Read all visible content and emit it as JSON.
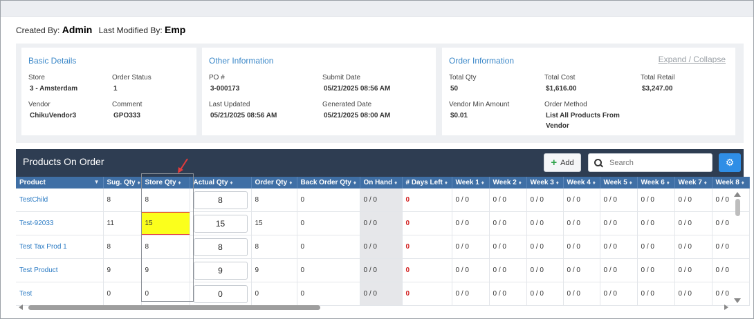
{
  "meta": {
    "created_by_label": "Created By:",
    "created_by": "Admin",
    "modified_by_label": "Last Modified By:",
    "modified_by": "Emp"
  },
  "expand_collapse": "Expand / Collapse",
  "basic": {
    "title": "Basic Details",
    "store_label": "Store",
    "store": "3 - Amsterdam",
    "status_label": "Order Status",
    "status": "1",
    "vendor_label": "Vendor",
    "vendor": "ChikuVendor3",
    "comment_label": "Comment",
    "comment": "GPO333"
  },
  "other": {
    "title": "Other Information",
    "po_label": "PO #",
    "po": "3-000173",
    "submit_label": "Submit Date",
    "submit": "05/21/2025 08:56 AM",
    "updated_label": "Last Updated",
    "updated": "05/21/2025 08:56 AM",
    "generated_label": "Generated Date",
    "generated": "05/21/2025 08:00 AM"
  },
  "order": {
    "title": "Order Information",
    "qty_label": "Total Qty",
    "qty": "50",
    "cost_label": "Total Cost",
    "cost": "$1,616.00",
    "retail_label": "Total Retail",
    "retail": "$3,247.00",
    "min_label": "Vendor Min Amount",
    "min": "$0.01",
    "method_label": "Order Method",
    "method": "List All Products From Vendor"
  },
  "grid": {
    "title": "Products On Order",
    "add_label": "Add",
    "search_placeholder": "Search",
    "columns": [
      "Product",
      "Sug. Qty",
      "Store Qty",
      "Actual Qty",
      "Order Qty",
      "Back Order Qty",
      "On Hand",
      "# Days Left",
      "Week 1",
      "Week 2",
      "Week 3",
      "Week 4",
      "Week 5",
      "Week 6",
      "Week 7",
      "Week 8"
    ],
    "rows": [
      {
        "product": "TestChild",
        "sug": "8",
        "store": "8",
        "actual": "8",
        "order": "8",
        "back": "0",
        "onhand": "0 / 0",
        "days": "0",
        "weeks": [
          "0 / 0",
          "0 / 0",
          "0 / 0",
          "0 / 0",
          "0 / 0",
          "0 / 0",
          "0 / 0",
          "0 / 0"
        ]
      },
      {
        "product": "Test-92033",
        "sug": "11",
        "store": "15",
        "actual": "15",
        "order": "15",
        "back": "0",
        "onhand": "0 / 0",
        "days": "0",
        "weeks": [
          "0 / 0",
          "0 / 0",
          "0 / 0",
          "0 / 0",
          "0 / 0",
          "0 / 0",
          "0 / 0",
          "0 / 0"
        ]
      },
      {
        "product": "Test Tax Prod 1",
        "sug": "8",
        "store": "8",
        "actual": "8",
        "order": "8",
        "back": "0",
        "onhand": "0 / 0",
        "days": "0",
        "weeks": [
          "0 / 0",
          "0 / 0",
          "0 / 0",
          "0 / 0",
          "0 / 0",
          "0 / 0",
          "0 / 0",
          "0 / 0"
        ]
      },
      {
        "product": "Test Product",
        "sug": "9",
        "store": "9",
        "actual": "9",
        "order": "9",
        "back": "0",
        "onhand": "0 / 0",
        "days": "0",
        "weeks": [
          "0 / 0",
          "0 / 0",
          "0 / 0",
          "0 / 0",
          "0 / 0",
          "0 / 0",
          "0 / 0",
          "0 / 0"
        ]
      },
      {
        "product": "Test",
        "sug": "0",
        "store": "0",
        "actual": "0",
        "order": "0",
        "back": "0",
        "onhand": "0 / 0",
        "days": "0",
        "weeks": [
          "0 / 0",
          "0 / 0",
          "0 / 0",
          "0 / 0",
          "0 / 0",
          "0 / 0",
          "0 / 0",
          "0 / 0"
        ]
      }
    ]
  },
  "icons": {
    "add": "plus-icon",
    "search": "search-icon",
    "settings": "gear-icon",
    "sort": "sort-icon",
    "annotation": "arrow-icon"
  },
  "colors": {
    "header_bg": "#2e3d52",
    "column_header_bg": "#3f6fa5",
    "link": "#2b7bc4",
    "highlight": "#fbff1c",
    "highlight_border": "#e53b3b",
    "days_left": "#d21f1f"
  }
}
